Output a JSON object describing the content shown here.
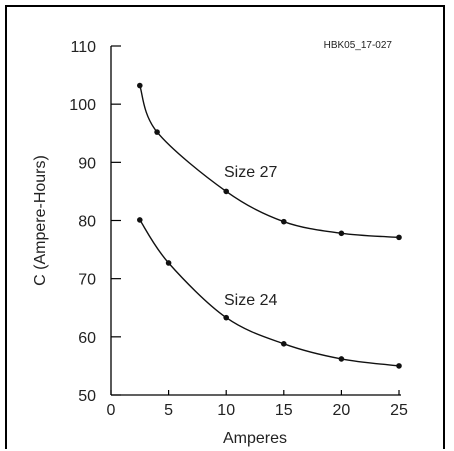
{
  "figure_id": "HBK05_17-027",
  "chart_data": {
    "type": "line",
    "xlabel": "Amperes",
    "ylabel": "C (Ampere-Hours)",
    "xlim": [
      0,
      25
    ],
    "ylim": [
      50,
      110
    ],
    "x_ticks": [
      "0",
      "5",
      "10",
      "15",
      "20",
      "25"
    ],
    "y_ticks": [
      "50",
      "60",
      "70",
      "80",
      "90",
      "100",
      "110"
    ],
    "grid": false,
    "series": [
      {
        "name": "Size 27",
        "points": [
          {
            "x": 2.5,
            "y": 103.2
          },
          {
            "x": 4,
            "y": 95.2
          },
          {
            "x": 10,
            "y": 85
          },
          {
            "x": 15,
            "y": 79.8
          },
          {
            "x": 20,
            "y": 77.8
          },
          {
            "x": 25,
            "y": 77.1
          }
        ]
      },
      {
        "name": "Size 24",
        "points": [
          {
            "x": 2.5,
            "y": 80.1
          },
          {
            "x": 5,
            "y": 72.7
          },
          {
            "x": 10,
            "y": 63.3
          },
          {
            "x": 15,
            "y": 58.8
          },
          {
            "x": 20,
            "y": 56.2
          },
          {
            "x": 25,
            "y": 55
          }
        ]
      }
    ]
  }
}
